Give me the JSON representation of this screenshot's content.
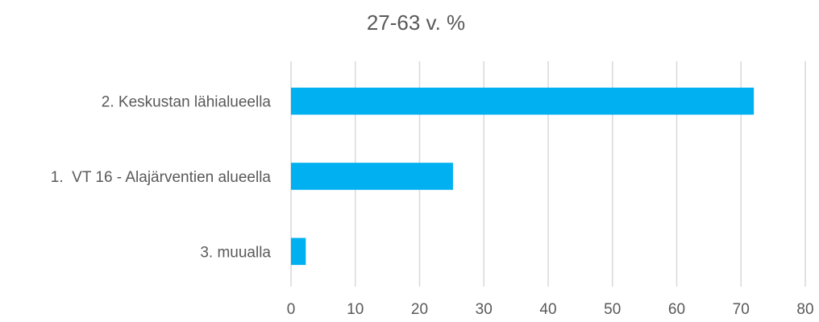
{
  "chart_data": {
    "type": "bar",
    "orientation": "horizontal",
    "title": "27-63 v. %",
    "categories": [
      "2. Keskustan lähialueella",
      "1.  VT 16 - Alajärventien alueella",
      "3. muualla"
    ],
    "values": [
      72,
      25.2,
      2.3
    ],
    "xlim": [
      0,
      80
    ],
    "xticks": [
      0,
      10,
      20,
      30,
      40,
      50,
      60,
      70,
      80
    ],
    "grid": "vertical",
    "legend": "none",
    "bar_color": "#00b0f0",
    "grid_color": "#d9d9d9",
    "text_color": "#595959"
  }
}
